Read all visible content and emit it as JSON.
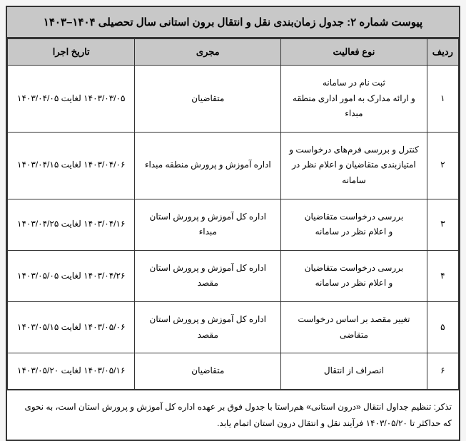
{
  "title": "پیوست شماره ۲: جدول زمان‌بندی نقل و انتقال برون استانی سال تحصیلی ۱۴۰۴–۱۴۰۳",
  "columns": {
    "row_num": "ردیف",
    "activity": "نوع فعالیت",
    "executor": "مجری",
    "date": "تاریخ اجرا"
  },
  "rows": [
    {
      "num": "۱",
      "activity": "ثبت نام در سامانه\nو ارائه مدارک به امور اداری منطقه مبداء",
      "executor": "متقاضیان",
      "date": "۱۴۰۳/۰۳/۰۵ لغایت ۱۴۰۳/۰۴/۰۵"
    },
    {
      "num": "۲",
      "activity": "کنترل و بررسی فرم‌های درخواست و امتیازبندی متقاضیان و اعلام نظر در سامانه",
      "executor": "اداره آموزش و پرورش منطقه مبداء",
      "date": "۱۴۰۳/۰۴/۰۶ لغایت ۱۴۰۳/۰۴/۱۵"
    },
    {
      "num": "۳",
      "activity": "بررسی درخواست متقاضیان\nو اعلام نظر در سامانه",
      "executor": "اداره کل آموزش و پرورش استان مبداء",
      "date": "۱۴۰۳/۰۴/۱۶ لغایت ۱۴۰۳/۰۴/۲۵"
    },
    {
      "num": "۴",
      "activity": "بررسی درخواست متقاضیان\nو اعلام نظر در سامانه",
      "executor": "اداره کل آموزش و پرورش استان مقصد",
      "date": "۱۴۰۳/۰۴/۲۶ لغایت ۱۴۰۳/۰۵/۰۵"
    },
    {
      "num": "۵",
      "activity": "تغییر مقصد بر اساس درخواست متقاضی",
      "executor": "اداره کل آموزش و پرورش استان مقصد",
      "date": "۱۴۰۳/۰۵/۰۶ لغایت ۱۴۰۳/۰۵/۱۵"
    },
    {
      "num": "۶",
      "activity": "انصراف از انتقال",
      "executor": "متقاضیان",
      "date": "۱۴۰۳/۰۵/۱۶ لغایت ۱۴۰۳/۰۵/۲۰"
    }
  ],
  "footer": "تذکر: تنظیم جداول انتقال «درون استانی» هم‌راستا با جدول فوق بر عهده اداره کل آموزش و پرورش استان است، به نحوی که حداکثر تا ۱۴۰۳/۰۵/۲۰ فرآیند نقل و انتقال درون استان اتمام یابد."
}
